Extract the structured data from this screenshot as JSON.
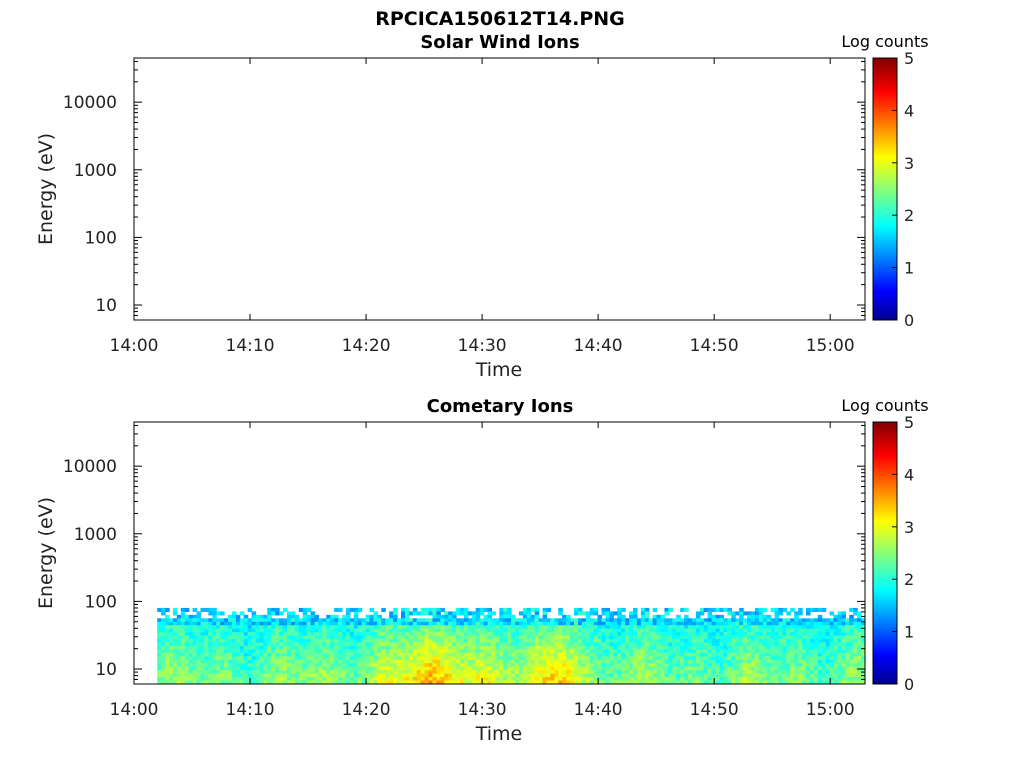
{
  "figure_title": "RPCICA150612T14.PNG",
  "chart_data": [
    {
      "type": "heatmap",
      "title": "Solar Wind Ions",
      "xlabel": "Time",
      "ylabel": "Energy (eV)",
      "x_ticks": [
        "14:00",
        "14:10",
        "14:20",
        "14:30",
        "14:40",
        "14:50",
        "15:00"
      ],
      "x_range": [
        "14:00",
        "15:03"
      ],
      "y_scale": "log",
      "y_range": [
        6,
        45000
      ],
      "y_ticks": [
        10,
        100,
        1000,
        10000
      ],
      "y_tick_labels": [
        "10",
        "100",
        "1000",
        "10000"
      ],
      "colorbar": {
        "label": "Log counts",
        "range": [
          0,
          5
        ],
        "ticks": [
          "0",
          "1",
          "2",
          "3",
          "4",
          "5"
        ],
        "colormap": "jet"
      },
      "data": "empty"
    },
    {
      "type": "heatmap",
      "title": "Cometary Ions",
      "xlabel": "Time",
      "ylabel": "Energy (eV)",
      "x_ticks": [
        "14:00",
        "14:10",
        "14:20",
        "14:30",
        "14:40",
        "14:50",
        "15:00"
      ],
      "x_range": [
        "14:00",
        "15:03"
      ],
      "y_scale": "log",
      "y_range": [
        6,
        45000
      ],
      "y_ticks": [
        10,
        100,
        1000,
        10000
      ],
      "y_tick_labels": [
        "10",
        "100",
        "1000",
        "10000"
      ],
      "colorbar": {
        "label": "Log counts",
        "range": [
          0,
          5
        ],
        "ticks": [
          "0",
          "1",
          "2",
          "3",
          "4",
          "5"
        ],
        "colormap": "jet"
      },
      "data_extent": {
        "time": [
          "14:02",
          "15:03"
        ],
        "energy_eV": [
          6,
          80
        ]
      },
      "typical_log_counts": [
        1.5,
        3.2
      ]
    }
  ]
}
